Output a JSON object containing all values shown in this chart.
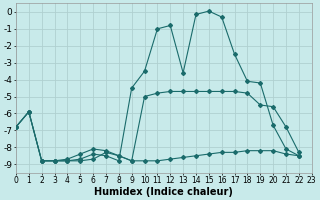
{
  "xlabel": "Humidex (Indice chaleur)",
  "bg_color": "#c8eaea",
  "grid_color": "#b0d0d0",
  "line_color": "#1a6b6b",
  "xlim": [
    0,
    23
  ],
  "ylim": [
    -9.5,
    0.5
  ],
  "xticks": [
    0,
    1,
    2,
    3,
    4,
    5,
    6,
    7,
    8,
    9,
    10,
    11,
    12,
    13,
    14,
    15,
    16,
    17,
    18,
    19,
    20,
    21,
    22,
    23
  ],
  "yticks": [
    0,
    -1,
    -2,
    -3,
    -4,
    -5,
    -6,
    -7,
    -8,
    -9
  ],
  "curve1_x": [
    0,
    1,
    2,
    3,
    4,
    5,
    6,
    7,
    8,
    9,
    10,
    11,
    12,
    13,
    14,
    15,
    16,
    17,
    18,
    19,
    20,
    21,
    22
  ],
  "curve1_y": [
    -6.8,
    -5.9,
    -8.8,
    -8.8,
    -8.8,
    -8.7,
    -8.4,
    -8.5,
    -8.8,
    -4.5,
    -3.5,
    -1.0,
    -0.8,
    -3.6,
    -0.15,
    0.05,
    -0.3,
    -2.5,
    -4.1,
    -4.2,
    -6.7,
    -8.1,
    -8.5
  ],
  "curve2_x": [
    0,
    1,
    2,
    3,
    4,
    5,
    6,
    7,
    8,
    9,
    10,
    11,
    12,
    13,
    14,
    15,
    16,
    17,
    18,
    19,
    20,
    21,
    22
  ],
  "curve2_y": [
    -6.8,
    -5.9,
    -8.8,
    -8.8,
    -8.7,
    -8.4,
    -8.1,
    -8.2,
    -8.5,
    -8.8,
    -5.0,
    -4.8,
    -4.7,
    -4.7,
    -4.7,
    -4.7,
    -4.7,
    -4.7,
    -4.8,
    -5.5,
    -5.6,
    -6.8,
    -8.3
  ],
  "curve3_x": [
    0,
    1,
    2,
    3,
    4,
    5,
    6,
    7,
    8,
    9,
    10,
    11,
    12,
    13,
    14,
    15,
    16,
    17,
    18,
    19,
    20,
    21,
    22
  ],
  "curve3_y": [
    -6.8,
    -5.9,
    -8.8,
    -8.8,
    -8.8,
    -8.8,
    -8.7,
    -8.3,
    -8.5,
    -8.8,
    -8.8,
    -8.8,
    -8.7,
    -8.6,
    -8.5,
    -8.4,
    -8.3,
    -8.3,
    -8.2,
    -8.2,
    -8.2,
    -8.4,
    -8.5
  ]
}
